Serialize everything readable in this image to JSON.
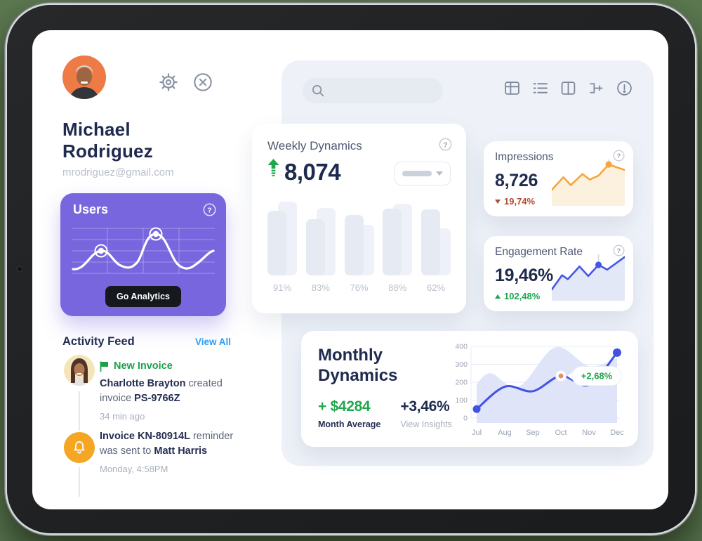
{
  "colors": {
    "accent_purple": "#7766de",
    "navy": "#1e2a4e",
    "green": "#1fa54e",
    "red": "#b54a30",
    "link_blue": "#2e9cf4",
    "orange": "#f6a63a",
    "blue_line": "#4456e7",
    "panel_bg": "#eef2f8"
  },
  "profile": {
    "name": "Michael Rodriguez",
    "email": "mrodriguez@gmail.com"
  },
  "search": {
    "value": "",
    "placeholder": ""
  },
  "users_card": {
    "title": "Users",
    "button_label": "Go Analytics"
  },
  "activity": {
    "title": "Activity Feed",
    "view_all_label": "View All",
    "items": [
      {
        "badge": "New Invoice",
        "seg1_bold": "Charlotte Brayton",
        "seg2": " created invoice ",
        "seg3_bold": "PS-9766Z",
        "time": "34 min ago"
      },
      {
        "seg1_bold": "Invoice KN-80914L",
        "seg2": " reminder was sent to ",
        "seg3_bold": "Matt Harris",
        "time": "Monday, 4:58PM"
      }
    ]
  },
  "weekly": {
    "title": "Weekly Dynamics",
    "value": "8,074"
  },
  "impressions": {
    "title": "Impressions",
    "value": "8,726",
    "delta": "19,74%"
  },
  "engagement": {
    "title": "Engagement Rate",
    "value": "19,46%",
    "delta": "102,48%"
  },
  "monthly": {
    "title": "Monthly Dynamics",
    "average_value": "+ $4284",
    "average_label": "Month Average",
    "percent_value": "+3,46%",
    "percent_label": "View Insights",
    "tooltip": "+2,68%"
  },
  "chart_data": [
    {
      "id": "weekly_bars",
      "type": "bar",
      "title": "Weekly Dynamics",
      "categories": [
        "91%",
        "83%",
        "76%",
        "88%",
        "62%"
      ],
      "series": [
        {
          "name": "previous",
          "values": [
            94,
            86,
            64,
            91,
            60
          ]
        },
        {
          "name": "current",
          "values": [
            82,
            71,
            77,
            85,
            84
          ]
        }
      ],
      "ylim": [
        0,
        100
      ],
      "unit": "percent-of-chart-height"
    },
    {
      "id": "impressions_spark",
      "type": "line",
      "x": [
        0,
        16,
        26,
        42,
        52,
        64,
        78,
        100
      ],
      "values": [
        40,
        24,
        34,
        20,
        27,
        22,
        8,
        15
      ],
      "marker_index": 6,
      "legend": "none",
      "note": "y in 0-60 viewport, smaller = higher"
    },
    {
      "id": "engagement_spark",
      "type": "line",
      "x": [
        0,
        14,
        22,
        38,
        50,
        64,
        76,
        100
      ],
      "values": [
        46,
        28,
        33,
        17,
        29,
        15,
        21,
        5
      ],
      "marker_index": 5,
      "legend": "none",
      "note": "y in 0-60 viewport, smaller = higher"
    },
    {
      "id": "monthly",
      "type": "area+line",
      "title": "Monthly Dynamics",
      "categories": [
        "Jul",
        "Aug",
        "Sep",
        "Oct",
        "Nov",
        "Dec"
      ],
      "line_values": [
        50,
        175,
        150,
        235,
        185,
        365
      ],
      "area_values": [
        190,
        250,
        175,
        395,
        290,
        335
      ],
      "area_x": [
        0,
        0.5,
        1.5,
        2.8,
        4,
        5
      ],
      "yticks": [
        400,
        300,
        200,
        100,
        0
      ],
      "ylim": [
        0,
        400
      ],
      "highlight_index": 3,
      "tooltip": "+2,68%",
      "grid": "horizontal"
    }
  ]
}
